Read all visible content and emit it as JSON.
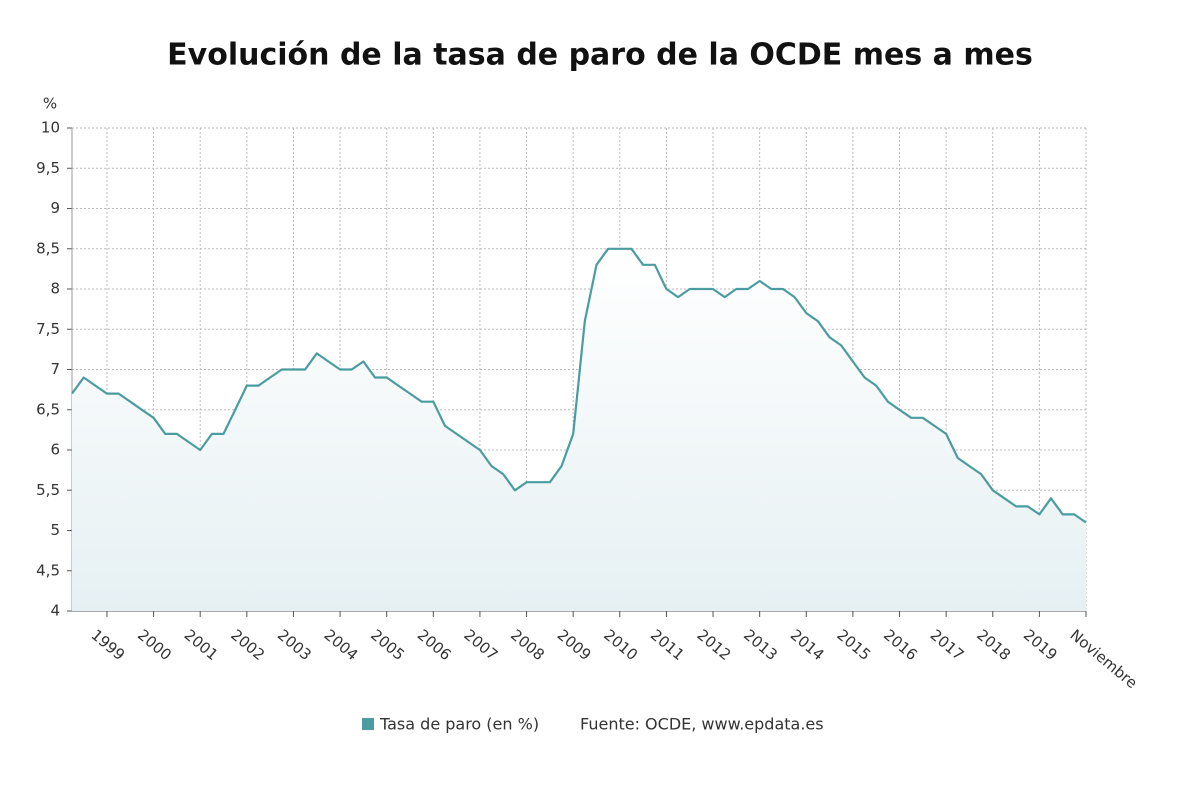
{
  "chart_data": {
    "type": "line",
    "title": "Evolución de la tasa de paro de la OCDE mes a mes",
    "y_label": "%",
    "source": "Fuente: OCDE, www.epdata.es",
    "categories": [
      null,
      null,
      null,
      "1999",
      null,
      null,
      null,
      "2000",
      null,
      null,
      null,
      "2001",
      null,
      null,
      null,
      "2002",
      null,
      null,
      null,
      "2003",
      null,
      null,
      null,
      "2004",
      null,
      null,
      null,
      "2005",
      null,
      null,
      null,
      "2006",
      null,
      null,
      null,
      "2007",
      null,
      null,
      null,
      "2008",
      null,
      null,
      null,
      "2009",
      null,
      null,
      null,
      "2010",
      null,
      null,
      null,
      "2011",
      null,
      null,
      null,
      "2012",
      null,
      null,
      null,
      "2013",
      null,
      null,
      null,
      "2014",
      null,
      null,
      null,
      "2015",
      null,
      null,
      null,
      "2016",
      null,
      null,
      null,
      "2017",
      null,
      null,
      null,
      "2018",
      null,
      null,
      null,
      "2019",
      null,
      null,
      null,
      "Noviembre"
    ],
    "series": [
      {
        "name": "Tasa de paro (en %)",
        "color": "#4a9ca0",
        "values": [
          6.7,
          6.9,
          6.8,
          6.7,
          6.7,
          6.6,
          6.5,
          6.4,
          6.2,
          6.2,
          6.1,
          6.0,
          6.2,
          6.2,
          6.5,
          6.8,
          6.8,
          6.9,
          7.0,
          7.0,
          7.0,
          7.2,
          7.1,
          7.0,
          7.0,
          7.1,
          6.9,
          6.9,
          6.8,
          6.7,
          6.6,
          6.6,
          6.3,
          6.2,
          6.1,
          6.0,
          5.8,
          5.7,
          5.5,
          5.6,
          5.6,
          5.6,
          5.8,
          6.2,
          7.6,
          8.3,
          8.5,
          8.5,
          8.5,
          8.3,
          8.3,
          8.0,
          7.9,
          8.0,
          8.0,
          8.0,
          7.9,
          8.0,
          8.0,
          8.1,
          8.0,
          8.0,
          7.9,
          7.7,
          7.6,
          7.4,
          7.3,
          7.1,
          6.9,
          6.8,
          6.6,
          6.5,
          6.4,
          6.4,
          6.3,
          6.2,
          5.9,
          5.8,
          5.7,
          5.5,
          5.4,
          5.3,
          5.3,
          5.2,
          5.4,
          5.2,
          5.2,
          5.1
        ]
      }
    ],
    "ylim": [
      4,
      10
    ],
    "yticks": [
      4,
      {
        "value": 4.5,
        "label": "4,5"
      },
      5,
      {
        "value": 5.5,
        "label": "5,5"
      },
      6,
      {
        "value": 6.5,
        "label": "6,5"
      },
      7,
      {
        "value": 7.5,
        "label": "7,5"
      },
      8,
      {
        "value": 8.5,
        "label": "8,5"
      },
      9,
      {
        "value": 9.5,
        "label": "9,5"
      },
      10
    ],
    "grid": true
  }
}
